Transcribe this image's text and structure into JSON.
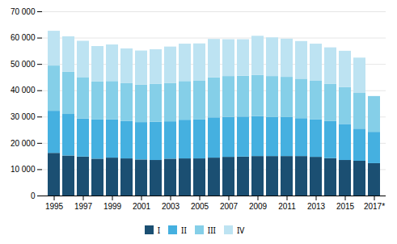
{
  "chart_data": {
    "type": "bar",
    "stacked": true,
    "categories": [
      "1995",
      null,
      "1997",
      null,
      "1999",
      null,
      "2001",
      null,
      "2003",
      null,
      "2005",
      null,
      "2007",
      null,
      "2009",
      null,
      "2011",
      null,
      "2013",
      null,
      "2015",
      null,
      "2017*"
    ],
    "series": [
      {
        "name": "I",
        "color": "#1b4f72",
        "values": [
          16200,
          15200,
          14800,
          14000,
          14400,
          14100,
          13700,
          13500,
          14000,
          14100,
          14100,
          14400,
          14700,
          14800,
          15000,
          15000,
          15000,
          15000,
          14700,
          14200,
          13500,
          13200,
          12300
        ]
      },
      {
        "name": "II",
        "color": "#45b0e0",
        "values": [
          16000,
          15800,
          14500,
          14900,
          14600,
          14300,
          14200,
          14500,
          14200,
          14700,
          14800,
          15300,
          15200,
          15200,
          15200,
          14800,
          14800,
          14400,
          14200,
          14100,
          13700,
          12200,
          11900
        ]
      },
      {
        "name": "III",
        "color": "#85cfe8",
        "values": [
          17200,
          16100,
          15700,
          14500,
          14500,
          14300,
          14200,
          14500,
          14600,
          14700,
          14700,
          15200,
          15500,
          15500,
          15600,
          15600,
          15300,
          15000,
          14700,
          14200,
          14000,
          13600,
          13600
        ]
      },
      {
        "name": "IV",
        "color": "#bde3f2",
        "values": [
          13200,
          13400,
          13800,
          13400,
          13900,
          13200,
          13000,
          13100,
          13800,
          14200,
          14200,
          14600,
          14000,
          13900,
          14900,
          14700,
          14500,
          14300,
          14100,
          13800,
          13800,
          13400,
          0
        ]
      }
    ],
    "ylim": [
      0,
      70000
    ],
    "yticks": [
      0,
      {
        "value": 10000,
        "label": "10 000"
      },
      {
        "value": 20000,
        "label": "20 000"
      },
      {
        "value": 30000,
        "label": "30 000"
      },
      {
        "value": 40000,
        "label": "40 000"
      },
      {
        "value": 50000,
        "label": "50 000"
      },
      {
        "value": 60000,
        "label": "60 000"
      },
      {
        "value": 70000,
        "label": "70 000"
      }
    ],
    "grid": true,
    "legend": "bottom"
  }
}
